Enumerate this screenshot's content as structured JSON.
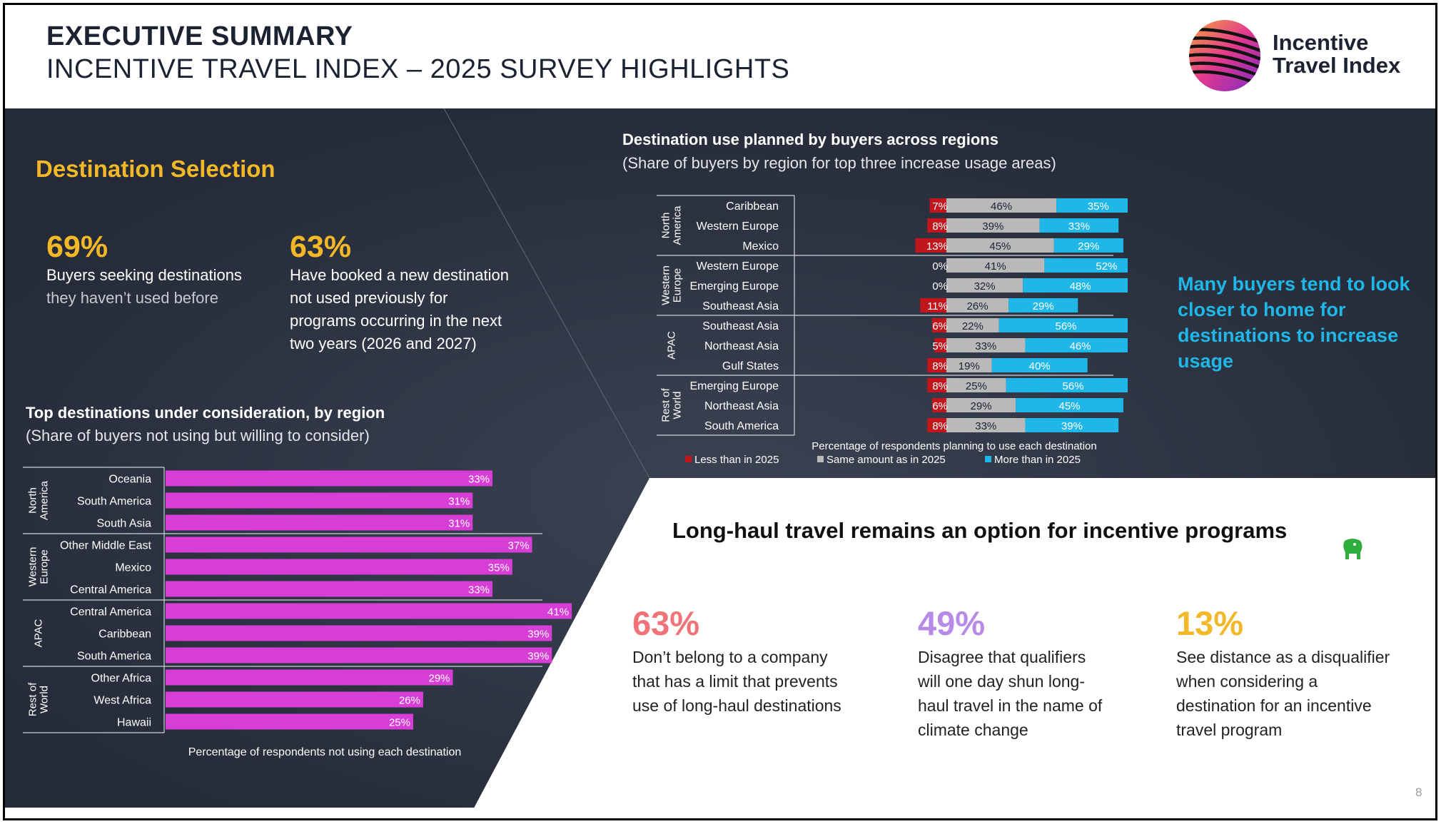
{
  "header": {
    "title": "EXECUTIVE SUMMARY",
    "subtitle": "INCENTIVE TRAVEL INDEX – 2025 SURVEY HIGHLIGHTS",
    "logo_text": "Incentive Travel Index"
  },
  "destination_selection": {
    "title": "Destination Selection",
    "stats": [
      {
        "value": "69%",
        "line1": "Buyers seeking destinations",
        "line2": "they haven’t used before"
      },
      {
        "value": "63%",
        "lines": [
          "Have booked a new destination",
          "not used previously for",
          "programs occurring in the next",
          "two years (2026 and 2027)"
        ]
      }
    ]
  },
  "callout": "Many buyers tend to look closer to home for destinations to increase usage",
  "long_haul": {
    "title": "Long-haul travel remains an option for incentive programs",
    "stats": [
      {
        "value": "63%",
        "color": "#f07378",
        "lines": [
          "Don’t belong to a company",
          "that has a limit that prevents",
          "use of long-haul destinations"
        ]
      },
      {
        "value": "49%",
        "color": "#b78ae8",
        "lines": [
          "Disagree that qualifiers",
          "will one day shun long-",
          "haul travel in the name of",
          "climate change"
        ]
      },
      {
        "value": "13%",
        "color": "#f2b827",
        "lines": [
          "See distance as a disqualifier",
          "when considering a",
          "destination for an incentive",
          "travel program"
        ]
      }
    ]
  },
  "page_number": "8",
  "colors": {
    "dark_bg": "#232936",
    "magenta": "#d63ed6",
    "red": "#c1161c",
    "gray": "#b9b9b9",
    "cyan": "#1fb7e8",
    "gold": "#f2b827"
  },
  "chart_data": [
    {
      "id": "planned_use",
      "type": "bar",
      "stacked": true,
      "orientation": "horizontal",
      "title": "Destination use planned by buyers across regions",
      "subtitle": "(Share of buyers by region for top three increase usage areas)",
      "xlabel": "Percentage of respondents planning to use each destination",
      "legend": [
        "Less than in 2025",
        "Same amount as in 2025",
        "More than in 2025"
      ],
      "groups": [
        {
          "name": "North America",
          "rows": [
            {
              "label": "Caribbean",
              "less": 7,
              "same": 46,
              "more": 35
            },
            {
              "label": "Western Europe",
              "less": 8,
              "same": 39,
              "more": 33
            },
            {
              "label": "Mexico",
              "less": 13,
              "same": 45,
              "more": 29
            }
          ]
        },
        {
          "name": "Western Europe",
          "rows": [
            {
              "label": "Western Europe",
              "less": 0,
              "same": 41,
              "more": 52
            },
            {
              "label": "Emerging Europe",
              "less": 0,
              "same": 32,
              "more": 48
            },
            {
              "label": "Southeast Asia",
              "less": 11,
              "same": 26,
              "more": 29
            }
          ]
        },
        {
          "name": "APAC",
          "rows": [
            {
              "label": "Southeast Asia",
              "less": 6,
              "same": 22,
              "more": 56
            },
            {
              "label": "Northeast Asia",
              "less": 5,
              "same": 33,
              "more": 46
            },
            {
              "label": "Gulf States",
              "less": 8,
              "same": 19,
              "more": 40
            }
          ]
        },
        {
          "name": "Rest of World",
          "rows": [
            {
              "label": "Emerging Europe",
              "less": 8,
              "same": 25,
              "more": 56
            },
            {
              "label": "Northeast Asia",
              "less": 6,
              "same": 29,
              "more": 45
            },
            {
              "label": "South America",
              "less": 8,
              "same": 33,
              "more": 39
            }
          ]
        }
      ]
    },
    {
      "id": "top_destinations",
      "type": "bar",
      "orientation": "horizontal",
      "title": "Top destinations under consideration, by region",
      "subtitle": "(Share of buyers not using but willing to consider)",
      "xlabel": "Percentage of respondents not using each destination",
      "xlim": [
        0,
        45
      ],
      "groups": [
        {
          "name": "North America",
          "rows": [
            {
              "label": "Oceania",
              "value": 33
            },
            {
              "label": "South America",
              "value": 31
            },
            {
              "label": "South Asia",
              "value": 31
            }
          ]
        },
        {
          "name": "Western Europe",
          "rows": [
            {
              "label": "Other Middle East",
              "value": 37
            },
            {
              "label": "Mexico",
              "value": 35
            },
            {
              "label": "Central America",
              "value": 33
            }
          ]
        },
        {
          "name": "APAC",
          "rows": [
            {
              "label": "Central America",
              "value": 41
            },
            {
              "label": "Caribbean",
              "value": 39
            },
            {
              "label": "South America",
              "value": 39
            }
          ]
        },
        {
          "name": "Rest of World",
          "rows": [
            {
              "label": "Other Africa",
              "value": 29
            },
            {
              "label": "West Africa",
              "value": 26
            },
            {
              "label": "Hawaii",
              "value": 25
            }
          ]
        }
      ]
    }
  ]
}
